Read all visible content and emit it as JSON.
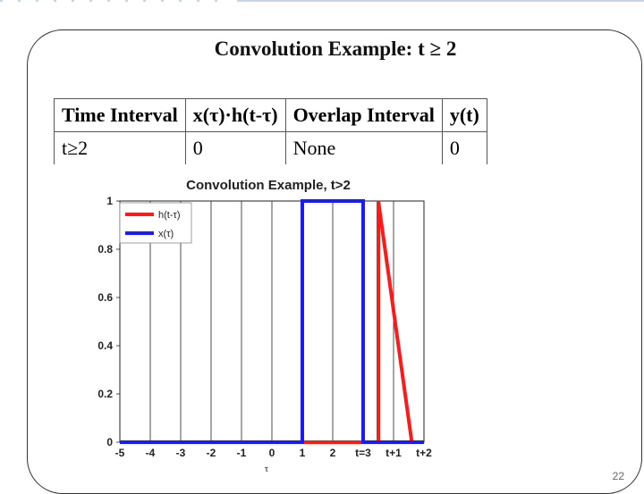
{
  "slide": {
    "title": "Convolution Example: t ≥ 2",
    "page_number": "22"
  },
  "table": {
    "headers": [
      "Time Interval",
      "x(τ)·h(t-τ)",
      "Overlap Interval",
      "y(t)"
    ],
    "rows": [
      [
        "t≥2",
        "0",
        "None",
        "0"
      ]
    ]
  },
  "chart_data": {
    "type": "line",
    "title": "Convolution Example, t>2",
    "xlabel": "τ",
    "ylabel": "",
    "xlim": [
      -5,
      5
    ],
    "ylim": [
      0,
      1
    ],
    "x_tick_labels": [
      "-5",
      "-4",
      "-3",
      "-2",
      "-1",
      "0",
      "1",
      "2",
      "t=3",
      "t+1",
      "t+2"
    ],
    "y_ticks": [
      0,
      0.2,
      0.4,
      0.6,
      0.8,
      1
    ],
    "y_tick_labels": [
      "0",
      "0.2",
      "0.4",
      "0.6",
      "0.8",
      "1"
    ],
    "grid": "vertical",
    "legend_position": "top-left",
    "series": [
      {
        "name": "h(t-τ)",
        "color": "#ff1a1a",
        "x": [
          -5,
          3.5,
          3.5,
          4.6,
          5
        ],
        "y": [
          0,
          0,
          1,
          0,
          0
        ]
      },
      {
        "name": "x(τ)",
        "color": "#1a1aff",
        "x": [
          -5,
          1,
          1,
          3,
          3,
          5
        ],
        "y": [
          0,
          0,
          1,
          1,
          0,
          0
        ]
      }
    ]
  }
}
